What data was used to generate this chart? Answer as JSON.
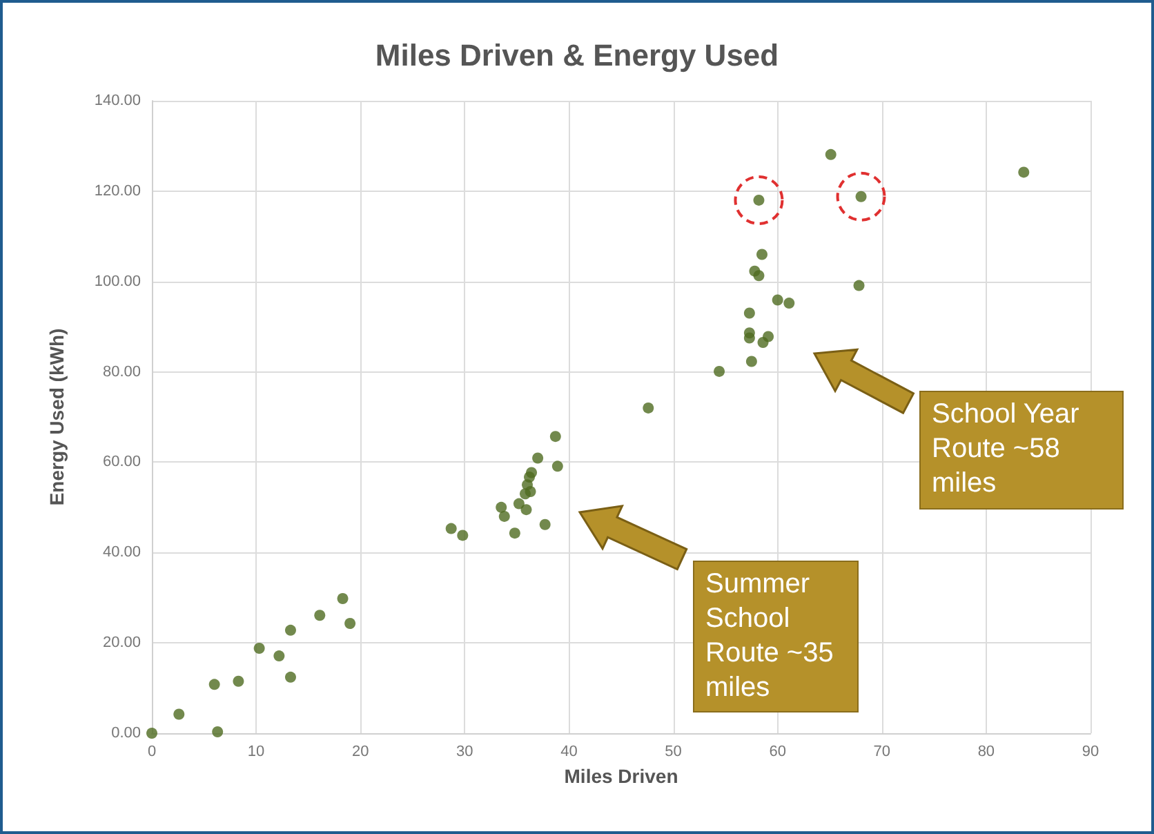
{
  "chart_data": {
    "type": "scatter",
    "title": "Miles Driven & Energy Used",
    "xlabel": "Miles Driven",
    "ylabel": "Energy Used (kWh)",
    "annotations": [
      "Summer School Route ~35 miles",
      "School Year Route ~58 miles"
    ],
    "x": [
      0,
      2.6,
      6.0,
      6.3,
      8.3,
      10.3,
      12.2,
      13.3,
      13.3,
      16.1,
      18.3,
      19.0,
      28.7,
      29.8,
      33.5,
      33.8,
      34.8,
      35.2,
      35.8,
      35.9,
      36.0,
      36.2,
      36.4,
      36.3,
      37.0,
      37.7,
      38.7,
      38.9,
      47.6,
      54.4,
      57.3,
      57.3,
      57.3,
      57.5,
      57.8,
      58.2,
      58.5,
      58.2,
      58.6,
      59.1,
      60.0,
      61.1,
      65.1,
      67.8,
      68.0,
      83.6
    ],
    "series": [
      {
        "color": "#4f6b21",
        "values": [
          0,
          4.2,
          10.8,
          0.3,
          11.5,
          18.8,
          17.1,
          22.8,
          12.4,
          26.1,
          29.8,
          24.3,
          45.3,
          43.8,
          50,
          48,
          44.3,
          50.8,
          53,
          49.5,
          55,
          56.7,
          57.7,
          53.5,
          60.9,
          46.2,
          65.7,
          59.1,
          72,
          80.1,
          93,
          88.6,
          87.5,
          82.3,
          102.3,
          101.3,
          106,
          118,
          86.5,
          87.8,
          95.9,
          95.2,
          128.1,
          99.1,
          118.8,
          124.2
        ]
      }
    ],
    "xlim": [
      0,
      90
    ],
    "xticks": [
      0,
      10,
      20,
      30,
      40,
      50,
      60,
      70,
      80,
      90
    ],
    "ylim": [
      0,
      140
    ],
    "yticks": [
      {
        "value": 0,
        "label": "0.00"
      },
      {
        "value": 20,
        "label": "20.00"
      },
      {
        "value": 40,
        "label": "40.00"
      },
      {
        "value": 60,
        "label": "60.00"
      },
      {
        "value": 80,
        "label": "80.00"
      },
      {
        "value": 100,
        "label": "100.00"
      },
      {
        "value": 120,
        "label": "120.00"
      },
      {
        "value": 140,
        "label": "140.00"
      }
    ],
    "grid": true,
    "marker": "circle"
  }
}
